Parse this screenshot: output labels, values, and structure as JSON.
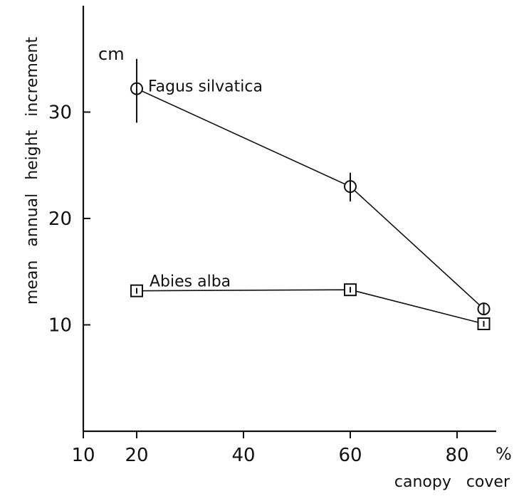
{
  "chart_data": {
    "type": "line",
    "xlabel": "canopy cover",
    "x_unit": "%",
    "ylabel": "mean annual height increment",
    "y_unit": "cm",
    "xlim": [
      10,
      90
    ],
    "ylim": [
      0,
      40
    ],
    "x_ticks": [
      10,
      20,
      40,
      60,
      80
    ],
    "y_ticks": [
      10,
      20,
      30
    ],
    "grid": false,
    "legend": "none",
    "series": [
      {
        "name": "Fagus silvatica",
        "marker": "circle",
        "x": [
          20,
          60,
          85
        ],
        "y": [
          32.2,
          23.0,
          11.5
        ],
        "error_low": [
          29.0,
          21.6,
          null
        ],
        "error_high": [
          35.0,
          24.3,
          null
        ]
      },
      {
        "name": "Abies alba",
        "marker": "square",
        "x": [
          20,
          60,
          85
        ],
        "y": [
          13.2,
          13.3,
          10.1
        ]
      }
    ]
  }
}
